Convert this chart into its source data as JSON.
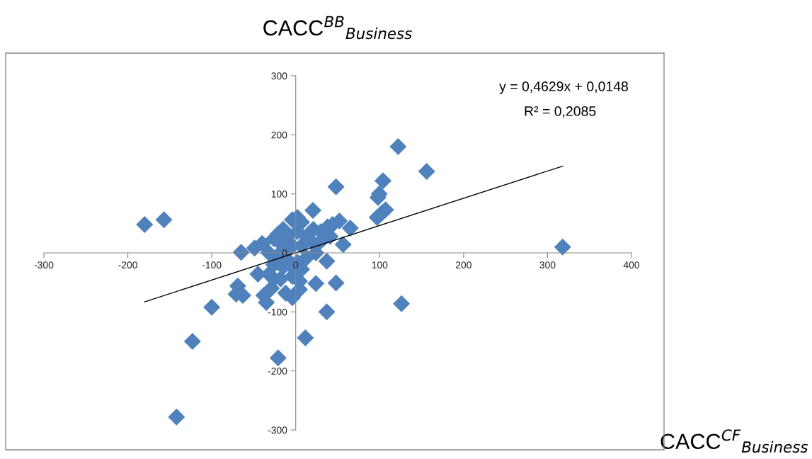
{
  "chart_data": {
    "type": "scatter",
    "title": "CACC$^{BB}$$_{Business}$",
    "xlabel": "CACC$^{CF}$$_{Business}$",
    "xlim": [
      -300,
      400
    ],
    "xticks": [
      -300,
      -200,
      -100,
      0,
      100,
      200,
      300,
      400
    ],
    "ylim": [
      -300,
      300
    ],
    "yticks": [
      -300,
      -200,
      -100,
      0,
      100,
      200,
      300
    ],
    "grid": false,
    "legend": false,
    "marker": "diamond",
    "annotations": [
      "y = 0,4629x + 0,0148",
      "R² = 0,2085"
    ],
    "series": [
      {
        "color": "#4f81bd",
        "x": [
          122,
          156,
          48,
          104,
          99.5,
          98,
          107,
          97,
          103,
          20.5,
          -180,
          -157,
          -65,
          318,
          65,
          56.5,
          52,
          37,
          48,
          24,
          4.5,
          -4,
          -12,
          37,
          126,
          11.5,
          -21,
          -123,
          -142,
          -100,
          -69,
          -71,
          -63,
          -38,
          -35,
          -45,
          -29,
          -26,
          -32,
          -4,
          4.5,
          -49,
          -40,
          -32,
          2,
          7,
          -4,
          -15,
          -21,
          -26,
          -9.5,
          2,
          13,
          21,
          30,
          38,
          44,
          33,
          24,
          7,
          -4,
          -15,
          -21,
          -9.5,
          2,
          13,
          24,
          -4,
          -15,
          7,
          -18,
          -9.5,
          41,
          18.5,
          -26
        ],
        "values": [
          180,
          138,
          112,
          122,
          100,
          94,
          73,
          60,
          68,
          72,
          48,
          56,
          1,
          10,
          42,
          14,
          54,
          -14,
          -51,
          -52,
          -62,
          -76,
          -68,
          -100,
          -86,
          -144,
          -178,
          -150,
          -278,
          -92,
          -56,
          -70,
          -72,
          -72,
          -84,
          -36,
          -60,
          -44,
          -36,
          -40,
          -48,
          8,
          16,
          0,
          60,
          52,
          56,
          40,
          32,
          24,
          28,
          36,
          28,
          40,
          36,
          44,
          48,
          24,
          12,
          12,
          12,
          12,
          -4,
          -12,
          -16,
          -8,
          0,
          -24,
          -24,
          -28,
          -44,
          4,
          28,
          20,
          -20
        ]
      },
      {
        "type": "line",
        "color": "#000000",
        "marker": "none",
        "x": [
          -180,
          318
        ],
        "values": [
          -83,
          147
        ]
      }
    ]
  }
}
